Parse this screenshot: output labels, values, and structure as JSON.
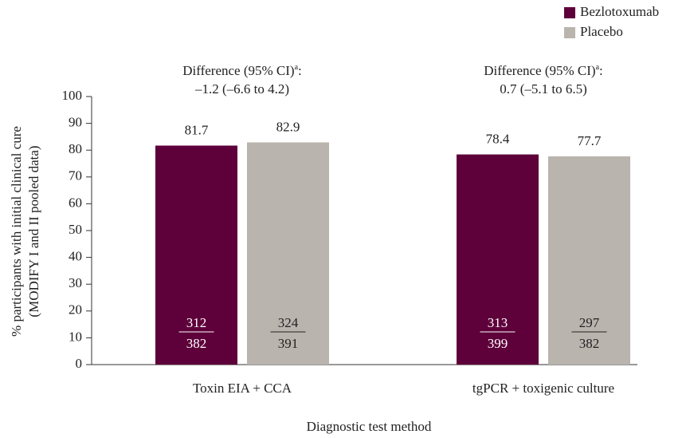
{
  "chart_data": {
    "type": "bar",
    "categories": [
      "Toxin EIA + CCA",
      "tgPCR + toxigenic culture"
    ],
    "series": [
      {
        "name": "Bezlotoxumab",
        "color": "#5e003a",
        "values": [
          81.7,
          78.4
        ],
        "numerators": [
          312,
          313
        ],
        "denominators": [
          382,
          399
        ]
      },
      {
        "name": "Placebo",
        "color": "#bab4ae",
        "values": [
          82.9,
          77.7
        ],
        "numerators": [
          324,
          297
        ],
        "denominators": [
          391,
          382
        ]
      }
    ],
    "annotations": [
      {
        "text": "Difference (95% CI)",
        "sup": "a",
        "suffix": ":",
        "detail": "–1.2 (–6.6 to 4.2)"
      },
      {
        "text": "Difference (95% CI)",
        "sup": "a",
        "suffix": ":",
        "detail": "0.7 (–5.1 to 6.5)"
      }
    ],
    "ylabel": [
      "% participants with initial clinical cure",
      "(MODIFY I and II pooled data)"
    ],
    "xlabel": "Diagnostic test method",
    "ylim": [
      0,
      100
    ],
    "yticks": [
      0,
      10,
      20,
      30,
      40,
      50,
      60,
      70,
      80,
      90,
      100
    ],
    "legend": "top-right"
  }
}
